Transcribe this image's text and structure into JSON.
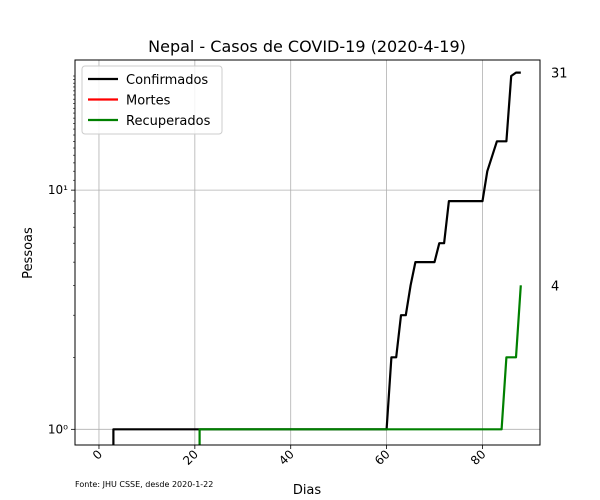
{
  "chart_data": {
    "type": "line",
    "title": "Nepal - Casos de COVID-19 (2020-4-19)",
    "xlabel": "Dias",
    "ylabel": "Pessoas",
    "yscale": "log",
    "xlim": [
      -5,
      92
    ],
    "ylim": [
      0.86,
      35
    ],
    "grid": true,
    "legend_position": "top-left",
    "x_ticks": [
      0,
      20,
      40,
      60,
      80
    ],
    "x_tick_labels": [
      "0",
      "20",
      "40",
      "60",
      "80"
    ],
    "y_ticks": [
      1,
      10
    ],
    "y_tick_labels": [
      "10⁰",
      "10¹"
    ],
    "source_note": "Fonte: JHU CSSE, desde 2020-1-22",
    "end_labels": [
      {
        "value": 31,
        "text": "31"
      },
      {
        "value": 4,
        "text": "4"
      }
    ],
    "series": [
      {
        "name": "Confirmados",
        "color": "#000000",
        "points": [
          [
            3,
            0.86
          ],
          [
            3,
            1
          ],
          [
            60,
            1
          ],
          [
            61,
            2
          ],
          [
            62,
            2
          ],
          [
            63,
            3
          ],
          [
            64,
            3
          ],
          [
            65,
            4
          ],
          [
            66,
            5
          ],
          [
            70,
            5
          ],
          [
            71,
            6
          ],
          [
            72,
            6
          ],
          [
            73,
            9
          ],
          [
            80,
            9
          ],
          [
            81,
            12
          ],
          [
            83,
            16
          ],
          [
            85,
            16
          ],
          [
            86,
            30
          ],
          [
            87,
            31
          ],
          [
            88,
            31
          ]
        ]
      },
      {
        "name": "Mortes",
        "color": "#ff0000",
        "points": []
      },
      {
        "name": "Recuperados",
        "color": "#008000",
        "points": [
          [
            21,
            0.86
          ],
          [
            21,
            1
          ],
          [
            84,
            1
          ],
          [
            85,
            2
          ],
          [
            87,
            2
          ],
          [
            88,
            4
          ]
        ]
      }
    ]
  }
}
